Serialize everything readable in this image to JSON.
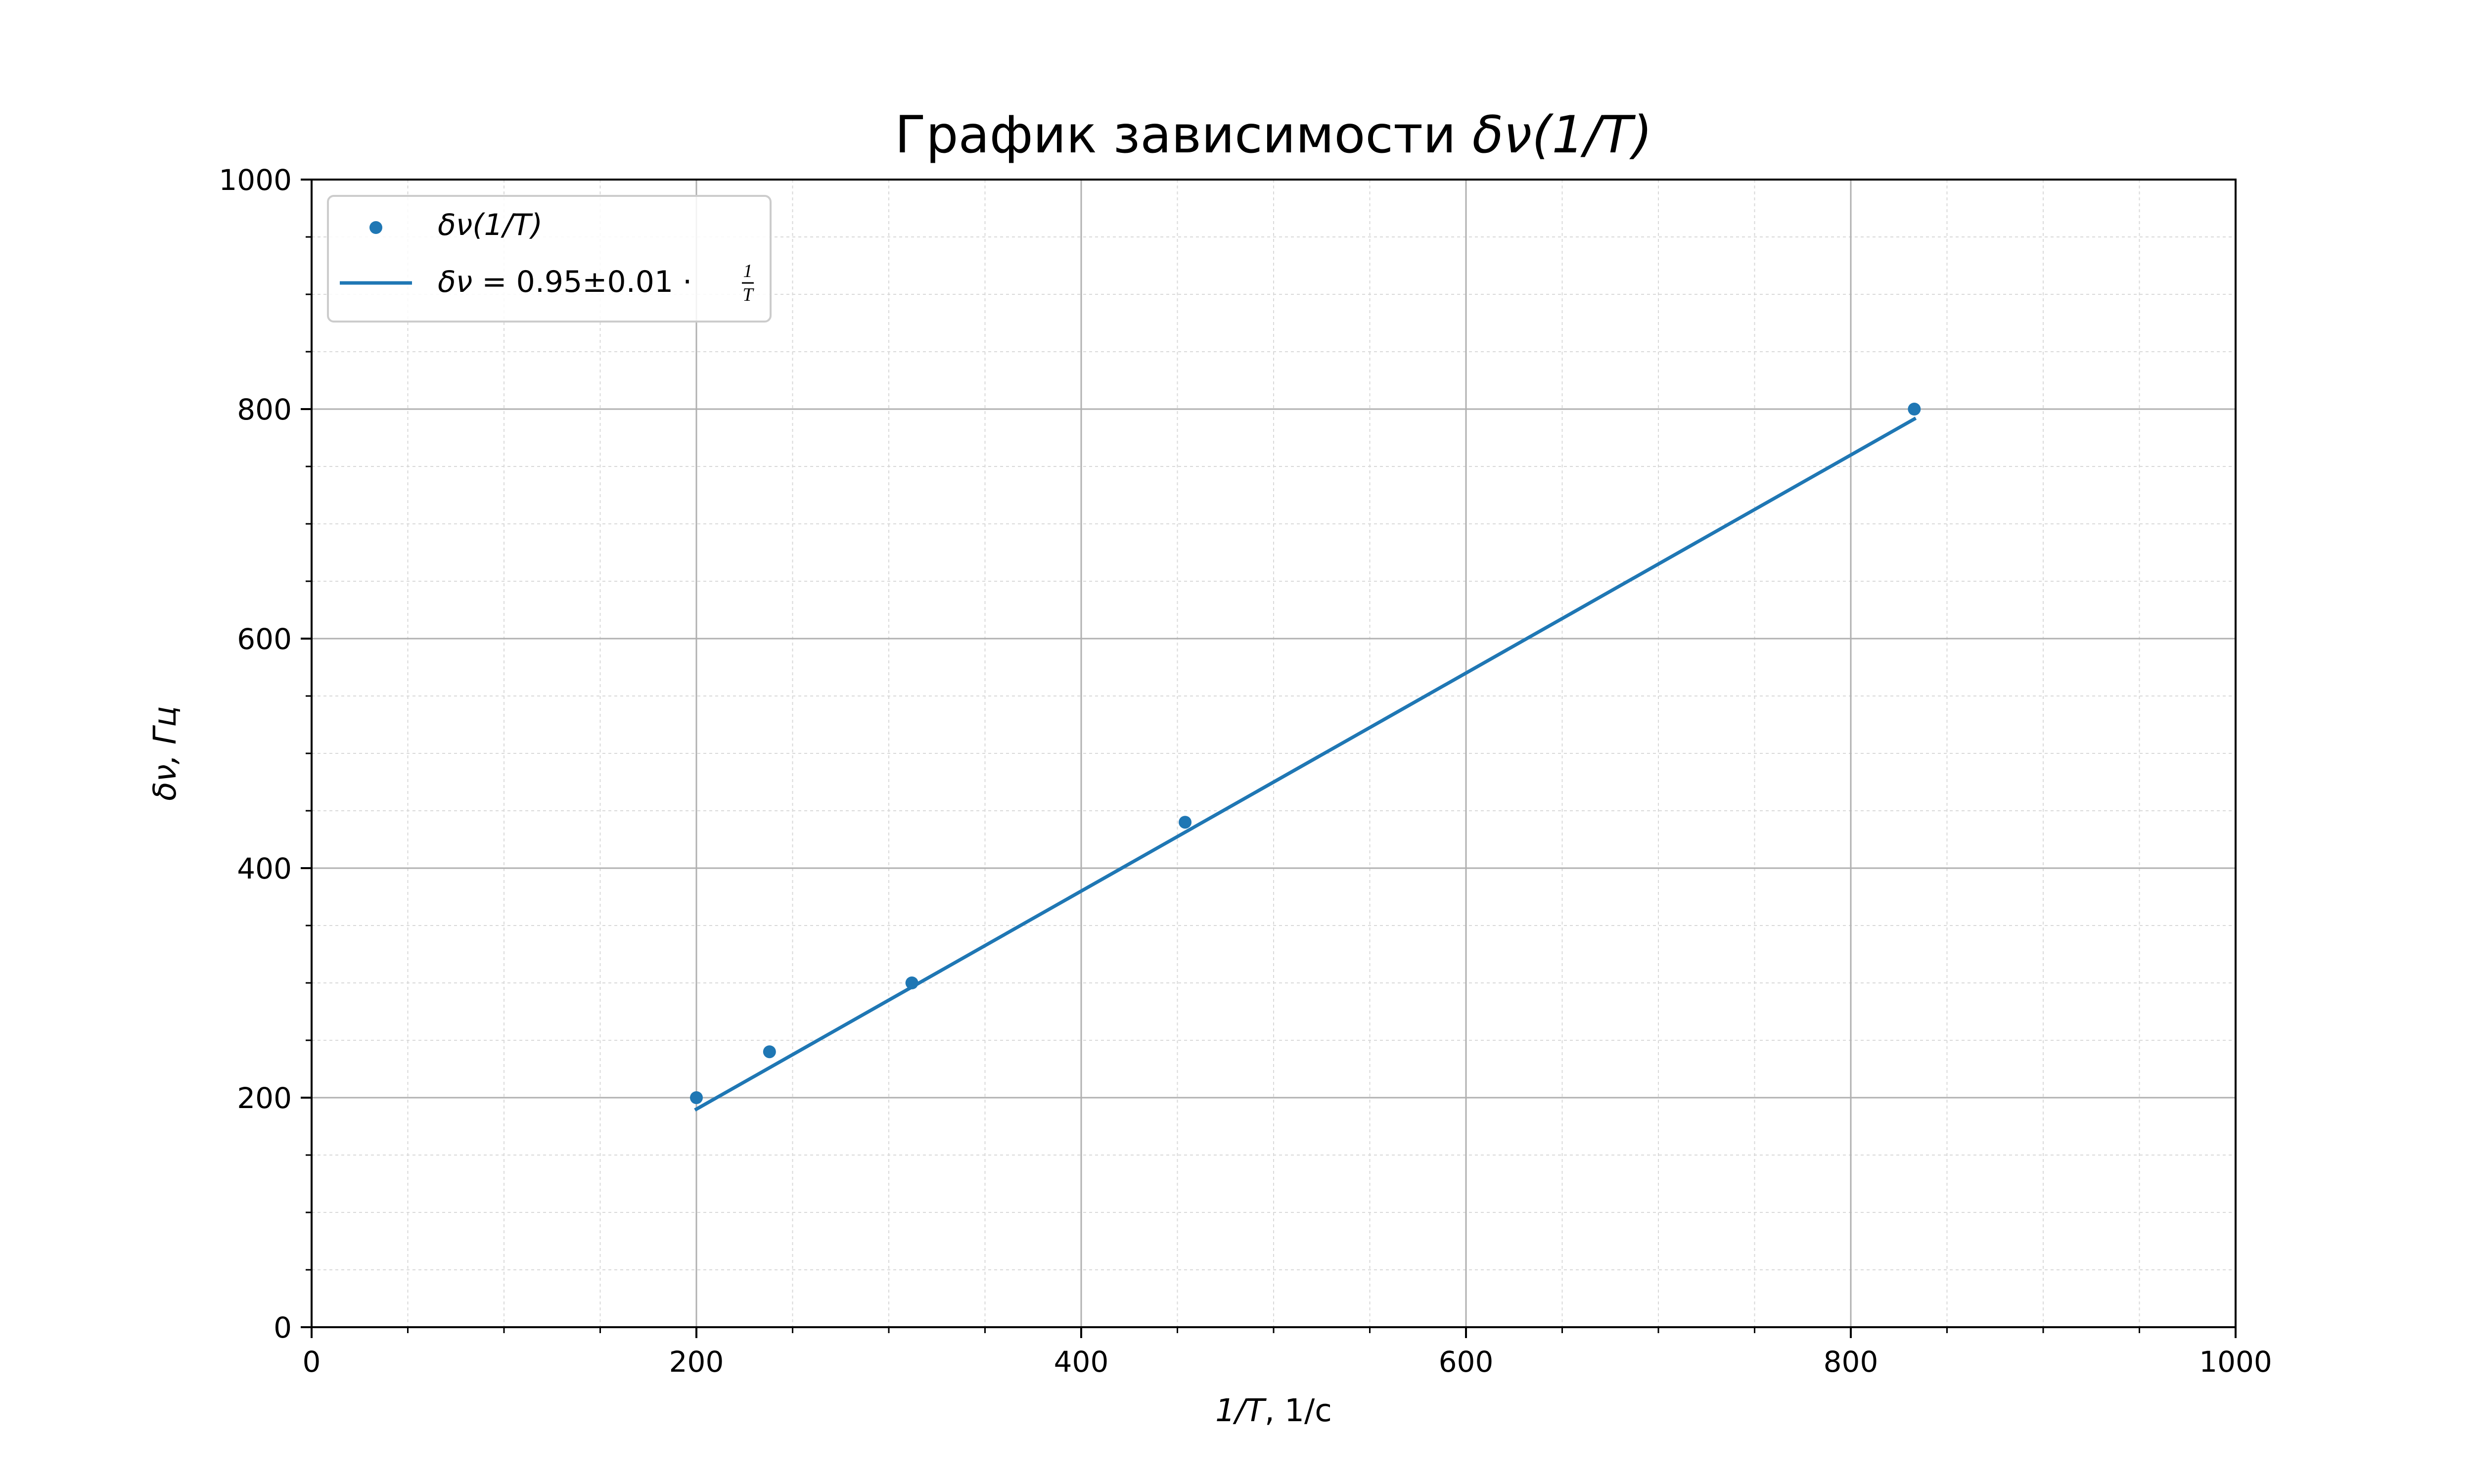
{
  "chart_data": {
    "type": "scatter",
    "title_prefix": "График зависимости ",
    "title_math": "δν(1/T)",
    "xlabel_math": "1/T",
    "xlabel_rest": ", 1/с",
    "ylabel_math": "δν, Гц",
    "xlim": [
      0,
      1000
    ],
    "ylim": [
      0,
      1000
    ],
    "x_ticks": [
      "0",
      "200",
      "400",
      "600",
      "800",
      "1000"
    ],
    "y_ticks": [
      "0",
      "200",
      "400",
      "600",
      "800",
      "1000"
    ],
    "grid": "major and minor",
    "legend_position": "upper-left",
    "color": "#1f77b4",
    "series": [
      {
        "name": "δν(1/T)",
        "kind": "scatter",
        "x": [
          200,
          238,
          312,
          454,
          833
        ],
        "y": [
          200,
          240,
          300,
          440,
          800
        ]
      },
      {
        "name_prefix": "δν",
        "name_mid": " = 0.95±0.01 · ",
        "name_num": "1",
        "name_den": "T",
        "kind": "line",
        "slope": 0.95,
        "x": [
          200,
          833
        ]
      }
    ]
  }
}
